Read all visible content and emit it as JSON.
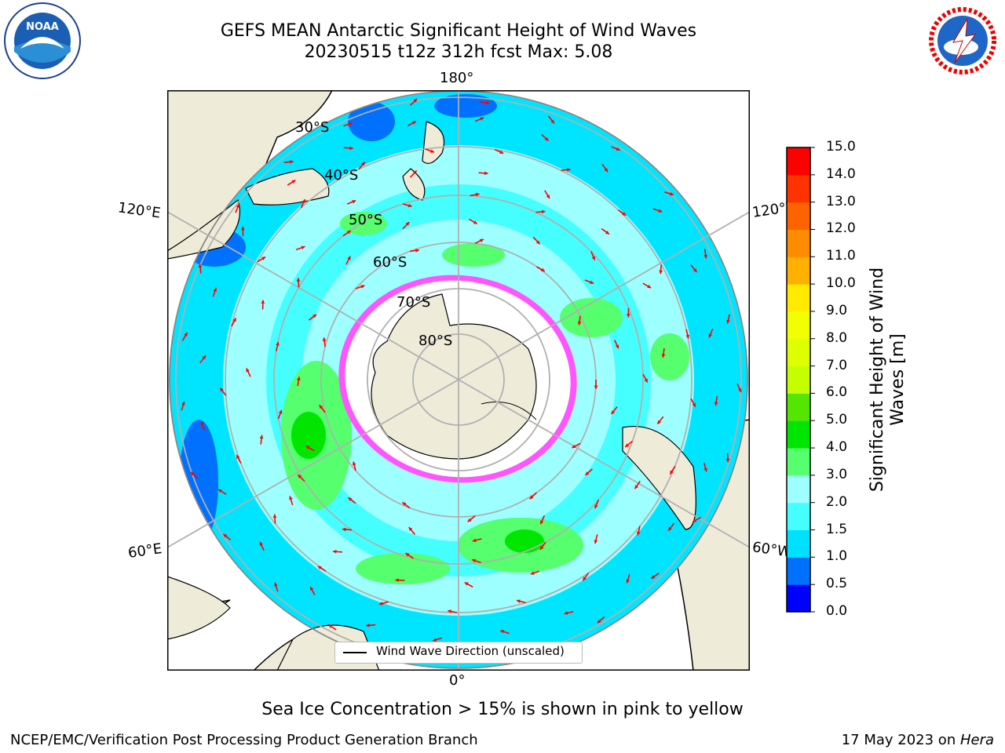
{
  "header": {
    "title_line1": "GEFS MEAN Antarctic Significant Height of Wind Waves",
    "title_line2": "20230515 t12z 312h fcst   Max: 5.08"
  },
  "map": {
    "lon_labels": {
      "top": "180°",
      "bottom": "0°",
      "upper_left": "120°E",
      "lower_left": "60°E",
      "upper_right": "120°W",
      "lower_right": "60°W"
    },
    "lat_labels": [
      "30°S",
      "40°S",
      "50°S",
      "60°S",
      "70°S",
      "80°S"
    ],
    "legend_label": "Wind Wave Direction (unscaled)",
    "land_color": "#eeecd9",
    "ocean_color": "#00e5ff",
    "arrow_color": "#ff0000"
  },
  "colorbar": {
    "label": "Significant Height of Wind Waves [m]",
    "ticks": [
      "0.0",
      "0.5",
      "1.0",
      "1.5",
      "2.0",
      "3.0",
      "4.0",
      "5.0",
      "6.0",
      "7.0",
      "8.0",
      "9.0",
      "10.0",
      "11.0",
      "12.0",
      "13.0",
      "14.0",
      "15.0"
    ],
    "colors": [
      "#0000ff",
      "#0070ff",
      "#00e1ff",
      "#45ffff",
      "#9dffff",
      "#55ff6e",
      "#00e600",
      "#55e600",
      "#c4ff00",
      "#deff00",
      "#f1ff00",
      "#ffea00",
      "#ffb000",
      "#ff8b00",
      "#ff6200",
      "#ff3300",
      "#ff0000"
    ]
  },
  "notes": {
    "sea_ice": "Sea Ice Concentration > 15% is shown in pink to yellow"
  },
  "footer": {
    "left": "NCEP/EMC/Verification Post Processing Product Generation Branch",
    "right_date": "17 May 2023 on ",
    "right_machine": "Hera"
  },
  "logos": {
    "noaa": "NOAA",
    "nws": "NATIONAL WEATHER SERVICE"
  }
}
